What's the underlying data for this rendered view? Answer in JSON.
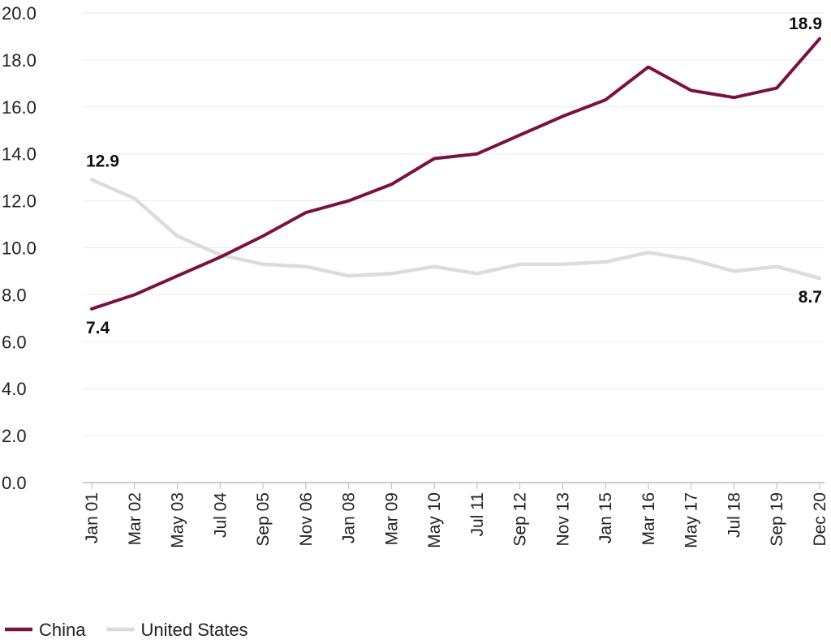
{
  "chart_data": {
    "type": "line",
    "x": [
      "Jan 01",
      "Mar 02",
      "May 03",
      "Jul 04",
      "Sep 05",
      "Nov 06",
      "Jan 08",
      "Mar 09",
      "May 10",
      "Jul 11",
      "Sep 12",
      "Nov 13",
      "Jan 15",
      "Mar 16",
      "May 17",
      "Jul 18",
      "Sep 19",
      "Dec 20"
    ],
    "ylim": [
      0,
      20
    ],
    "yticks": [
      "0.0",
      "2.0",
      "4.0",
      "6.0",
      "8.0",
      "10.0",
      "12.0",
      "14.0",
      "16.0",
      "18.0",
      "20.0"
    ],
    "grid": true,
    "legend_position": "bottom-left",
    "series": [
      {
        "name": "China",
        "color": "#7a1140",
        "values": [
          7.4,
          8.0,
          8.8,
          9.6,
          10.5,
          11.5,
          12.0,
          12.7,
          13.8,
          14.0,
          14.8,
          15.6,
          16.3,
          17.7,
          16.7,
          16.4,
          16.8,
          18.9
        ]
      },
      {
        "name": "United States",
        "color": "#dcdcdc",
        "values": [
          12.9,
          12.1,
          10.5,
          9.7,
          9.3,
          9.2,
          8.8,
          8.9,
          9.2,
          8.9,
          9.3,
          9.3,
          9.4,
          9.8,
          9.5,
          9.0,
          9.2,
          8.7
        ]
      }
    ],
    "annotations": [
      {
        "text": "18.9",
        "series": "China",
        "point": "end"
      },
      {
        "text": "7.4",
        "series": "China",
        "point": "start"
      },
      {
        "text": "12.9",
        "series": "United States",
        "point": "start"
      },
      {
        "text": "8.7",
        "series": "United States",
        "point": "end"
      }
    ]
  }
}
